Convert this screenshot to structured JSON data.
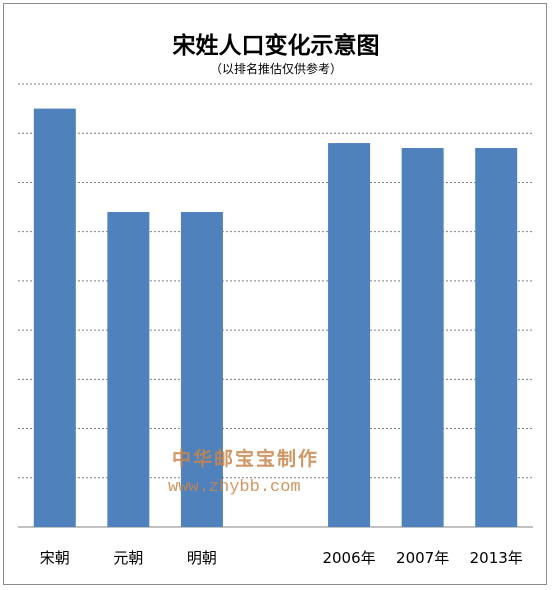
{
  "chart_data": {
    "type": "bar",
    "title": "宋姓人口变化示意图",
    "subtitle": "（以排名推估仅供参考）",
    "categories": [
      "宋朝",
      "元朝",
      "明朝",
      "",
      "2006年",
      "2007年",
      "2013年"
    ],
    "values": [
      8.5,
      6.4,
      6.4,
      null,
      7.8,
      7.7,
      7.7
    ],
    "ylim": [
      0,
      9
    ],
    "grid": true,
    "bar_color": "#4f81bd",
    "grid_color": "#7f7f7f",
    "xlabel": "",
    "ylabel": ""
  },
  "watermark": {
    "line1": "中华邮宝宝制作",
    "line2": "www.zhybb.com",
    "color": "#c8854a"
  }
}
